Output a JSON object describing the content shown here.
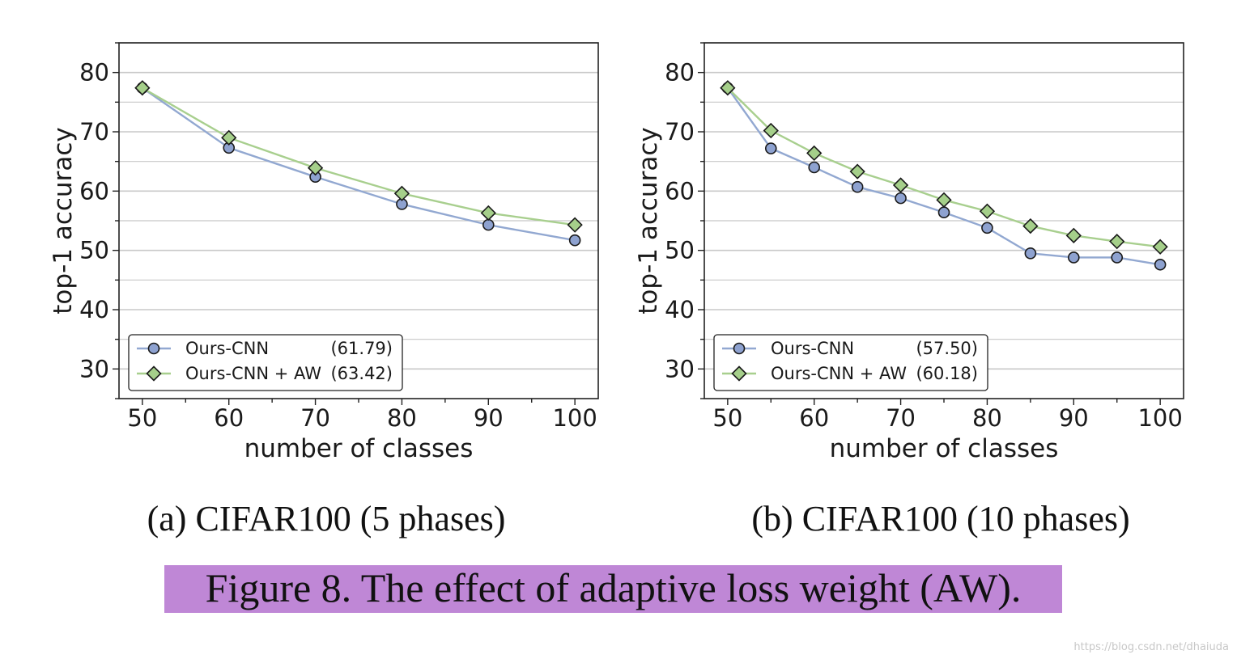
{
  "figure": {
    "caption": "Figure 8. The effect of adaptive loss weight (AW).",
    "watermark": "https://blog.csdn.net/dhaiuda"
  },
  "colors": {
    "cnn": "#92a8d1",
    "cnn_marker": "#8ea2d0",
    "aw": "#a8cf8e",
    "aw_marker": "#a5cf8a",
    "grid": "#c8c8c8",
    "caption_bg": "#bf87d6"
  },
  "chart_data": [
    {
      "type": "line",
      "subcaption_label": "(a)",
      "subcaption": "CIFAR100 (5 phases)",
      "xlabel": "number of classes",
      "ylabel": "top-1 accuracy",
      "xlim": [
        47.3,
        102.7
      ],
      "ylim": [
        25,
        85
      ],
      "xticks": [
        50,
        60,
        70,
        80,
        90,
        100
      ],
      "yticks": [
        30,
        40,
        50,
        60,
        70,
        80
      ],
      "grid": true,
      "legend_position": "lower-left",
      "series": [
        {
          "name": "Ours-CNN",
          "legend_value": "(61.79)",
          "marker": "circle",
          "x": [
            50,
            60,
            70,
            80,
            90,
            100
          ],
          "y": [
            77.4,
            67.3,
            62.4,
            57.8,
            54.3,
            51.7
          ]
        },
        {
          "name": "Ours-CNN + AW",
          "legend_value": "(63.42)",
          "marker": "diamond",
          "x": [
            50,
            60,
            70,
            80,
            90,
            100
          ],
          "y": [
            77.4,
            69.0,
            63.9,
            59.6,
            56.3,
            54.3
          ]
        }
      ]
    },
    {
      "type": "line",
      "subcaption_label": "(b)",
      "subcaption": "CIFAR100 (10 phases)",
      "xlabel": "number of classes",
      "ylabel": "top-1 accuracy",
      "xlim": [
        47.3,
        102.7
      ],
      "ylim": [
        25,
        85
      ],
      "xticks": [
        50,
        60,
        70,
        80,
        90,
        100
      ],
      "yticks": [
        30,
        40,
        50,
        60,
        70,
        80
      ],
      "grid": true,
      "legend_position": "lower-left",
      "series": [
        {
          "name": "Ours-CNN",
          "legend_value": "(57.50)",
          "marker": "circle",
          "x": [
            50,
            55,
            60,
            65,
            70,
            75,
            80,
            85,
            90,
            95,
            100
          ],
          "y": [
            77.4,
            67.2,
            64.0,
            60.7,
            58.8,
            56.4,
            53.8,
            49.5,
            48.8,
            48.8,
            47.6
          ]
        },
        {
          "name": "Ours-CNN + AW",
          "legend_value": "(60.18)",
          "marker": "diamond",
          "x": [
            50,
            55,
            60,
            65,
            70,
            75,
            80,
            85,
            90,
            95,
            100
          ],
          "y": [
            77.4,
            70.2,
            66.4,
            63.3,
            61.0,
            58.5,
            56.6,
            54.1,
            52.5,
            51.5,
            50.6
          ]
        }
      ]
    }
  ]
}
